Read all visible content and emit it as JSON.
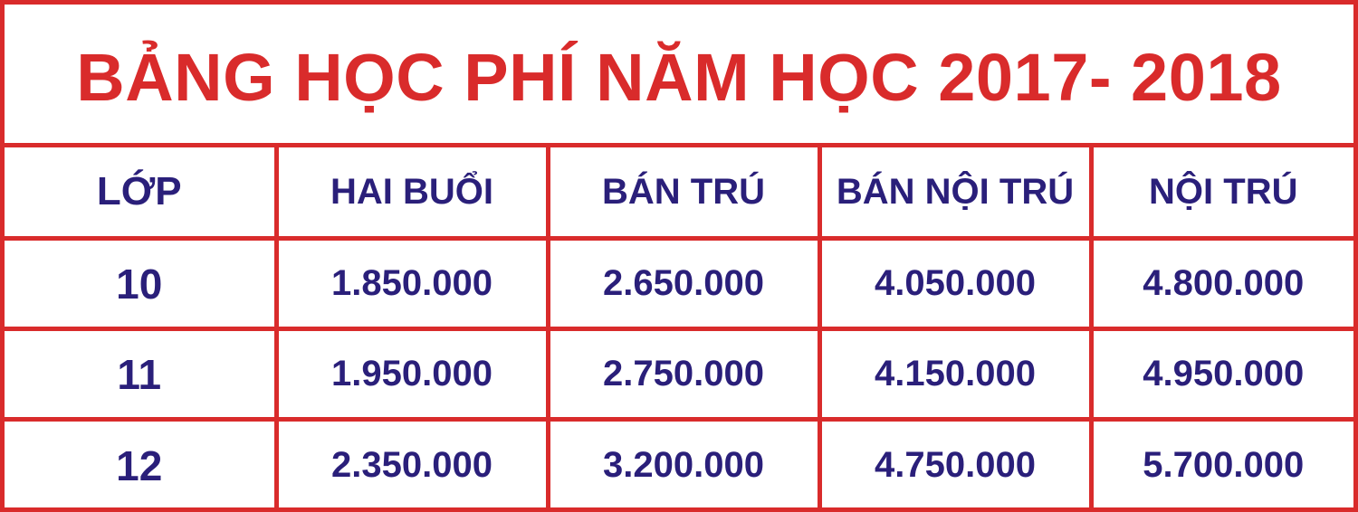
{
  "title": "BẢNG HỌC PHÍ NĂM HỌC 2017- 2018",
  "colors": {
    "border": "#d92b2b",
    "title": "#d92b2b",
    "text": "#2a1f7a",
    "background": "#ffffff"
  },
  "table": {
    "headers": [
      "LỚP",
      "HAI BUỔI",
      "BÁN TRÚ",
      "BÁN NỘI TRÚ",
      "NỘI TRÚ"
    ],
    "rows": [
      [
        "10",
        "1.850.000",
        "2.650.000",
        "4.050.000",
        "4.800.000"
      ],
      [
        "11",
        "1.950.000",
        "2.750.000",
        "4.150.000",
        "4.950.000"
      ],
      [
        "12",
        "2.350.000",
        "3.200.000",
        "4.750.000",
        "5.700.000"
      ]
    ]
  }
}
